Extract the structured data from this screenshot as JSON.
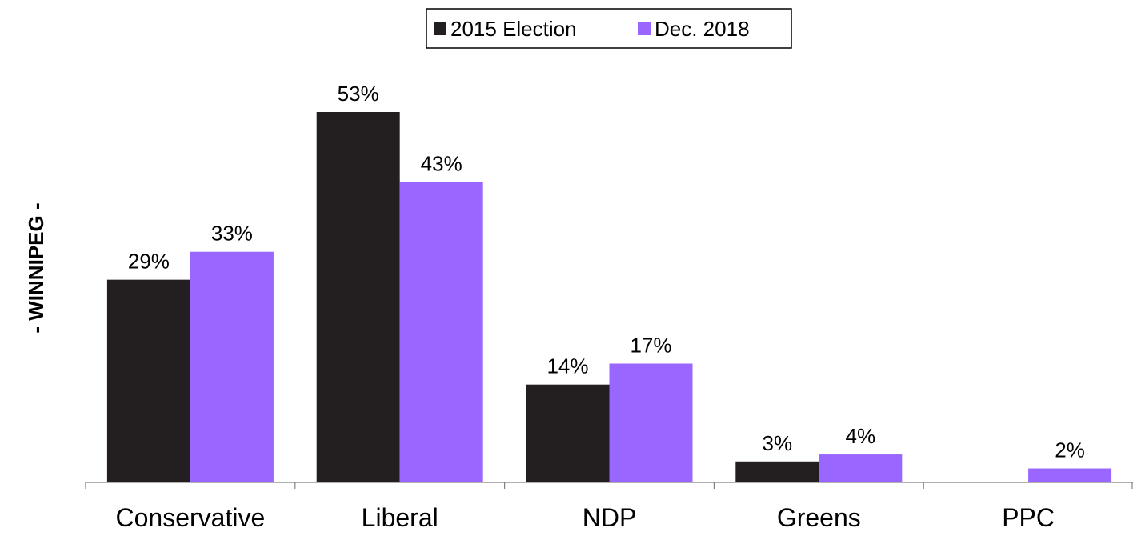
{
  "chart_data": {
    "type": "bar",
    "title": "",
    "xlabel": "",
    "ylabel": "- WINNIPEG -",
    "categories": [
      "Conservative",
      "Liberal",
      "NDP",
      "Greens",
      "PPC"
    ],
    "series": [
      {
        "name": "2015 Election",
        "color": "#231F20",
        "values": [
          29,
          53,
          14,
          3,
          null
        ],
        "labels": [
          "29%",
          "53%",
          "14%",
          "3%",
          ""
        ]
      },
      {
        "name": "Dec. 2018",
        "color": "#9966FF",
        "values": [
          33,
          43,
          17,
          4,
          2
        ],
        "labels": [
          "33%",
          "43%",
          "17%",
          "4%",
          "2%"
        ]
      }
    ],
    "ylim": [
      0,
      53
    ],
    "grid": false,
    "legend": "top-center"
  }
}
